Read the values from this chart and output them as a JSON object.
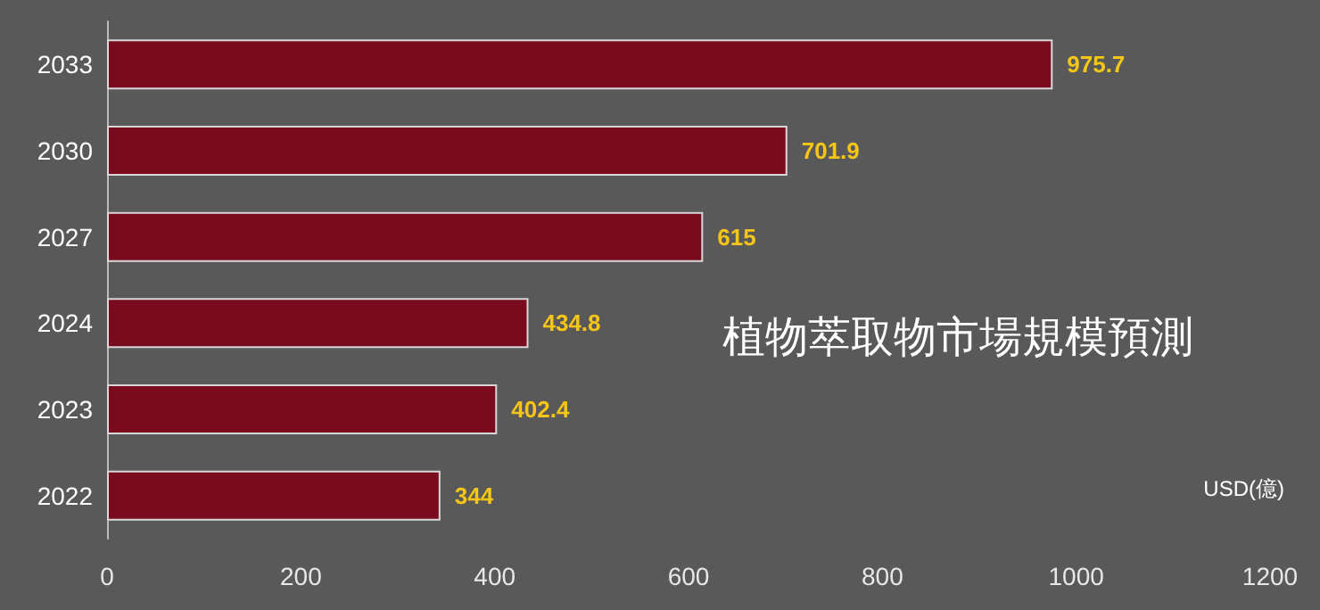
{
  "chart_data": {
    "type": "bar",
    "orientation": "horizontal",
    "title": "植物萃取物市場規模預測",
    "xlabel": "USD(億)",
    "categories": [
      "2033",
      "2030",
      "2027",
      "2024",
      "2023",
      "2022"
    ],
    "values": [
      975.7,
      701.9,
      615,
      434.8,
      402.4,
      344
    ],
    "color": "#7a0a1e",
    "data_labels": true,
    "grid": false,
    "xlim": [
      0,
      1200
    ],
    "xticks": [
      0,
      200,
      400,
      600,
      800,
      1000,
      1200
    ]
  }
}
